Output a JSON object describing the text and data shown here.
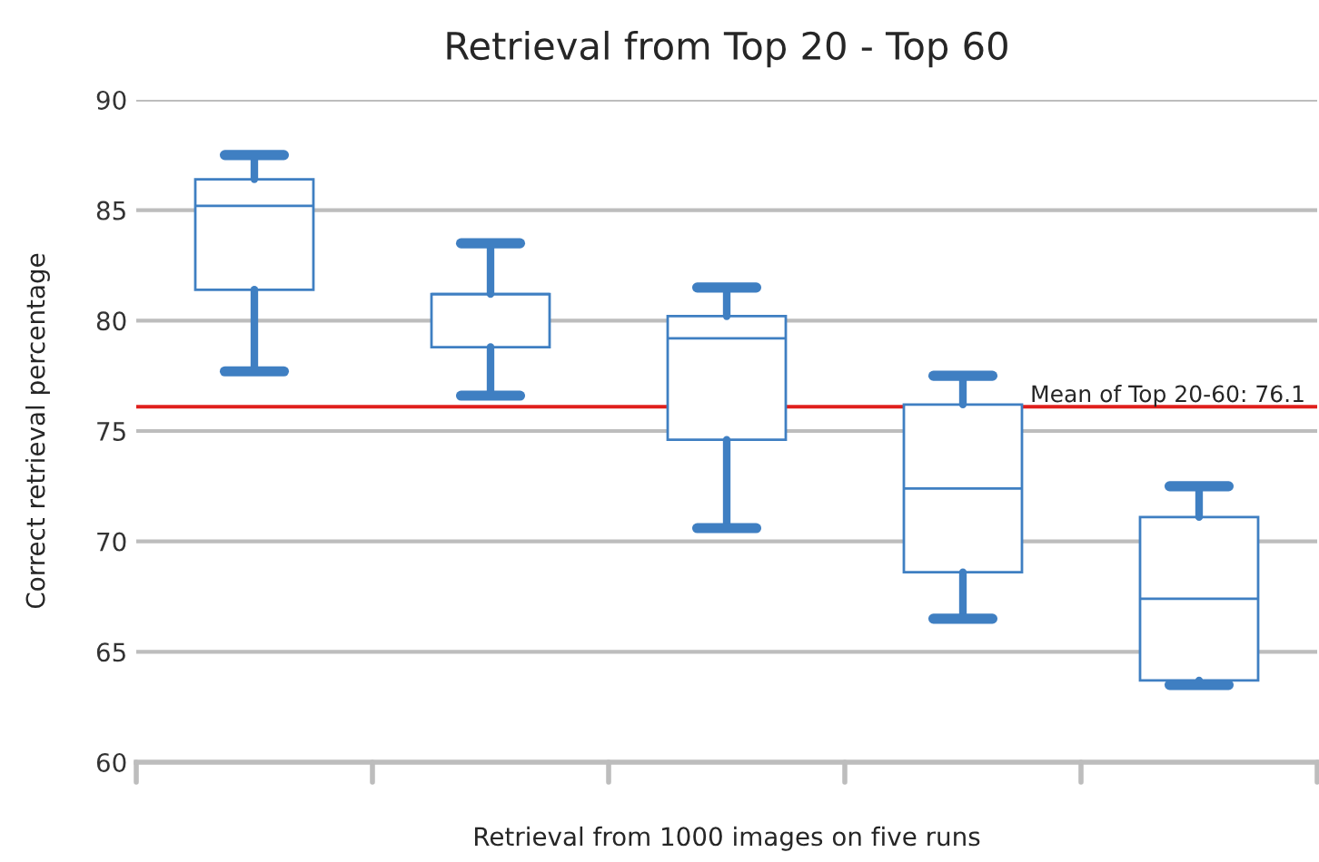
{
  "chart_data": {
    "type": "box",
    "title": "Retrieval from Top 20 - Top 60",
    "xlabel": "Retrieval from 1000 images on five runs",
    "ylabel": "Correct retrieval percentage",
    "categories": [
      null,
      null,
      null,
      null,
      null
    ],
    "series": [
      {
        "color": "#3f7fc2",
        "boxes": [
          {
            "low": 77.7,
            "q1": 81.4,
            "median": 85.2,
            "q3": 86.4,
            "high": 87.5
          },
          {
            "low": 76.6,
            "q1": 78.8,
            "median": 81.2,
            "q3": 81.2,
            "high": 83.5
          },
          {
            "low": 70.6,
            "q1": 74.6,
            "median": 79.2,
            "q3": 80.2,
            "high": 81.5
          },
          {
            "low": 66.5,
            "q1": 68.6,
            "median": 72.4,
            "q3": 76.2,
            "high": 77.5
          },
          {
            "low": 63.5,
            "q1": 63.7,
            "median": 67.4,
            "q3": 71.1,
            "high": 72.5
          }
        ]
      }
    ],
    "ylim": [
      60,
      90
    ],
    "yticks": [
      60,
      65,
      70,
      75,
      80,
      85,
      90
    ],
    "grid": "y",
    "ref_lines": [
      {
        "axis": "y",
        "value": 76.1,
        "label": "Mean of Top 20-60: 76.1",
        "color": "#e0201c"
      }
    ]
  }
}
